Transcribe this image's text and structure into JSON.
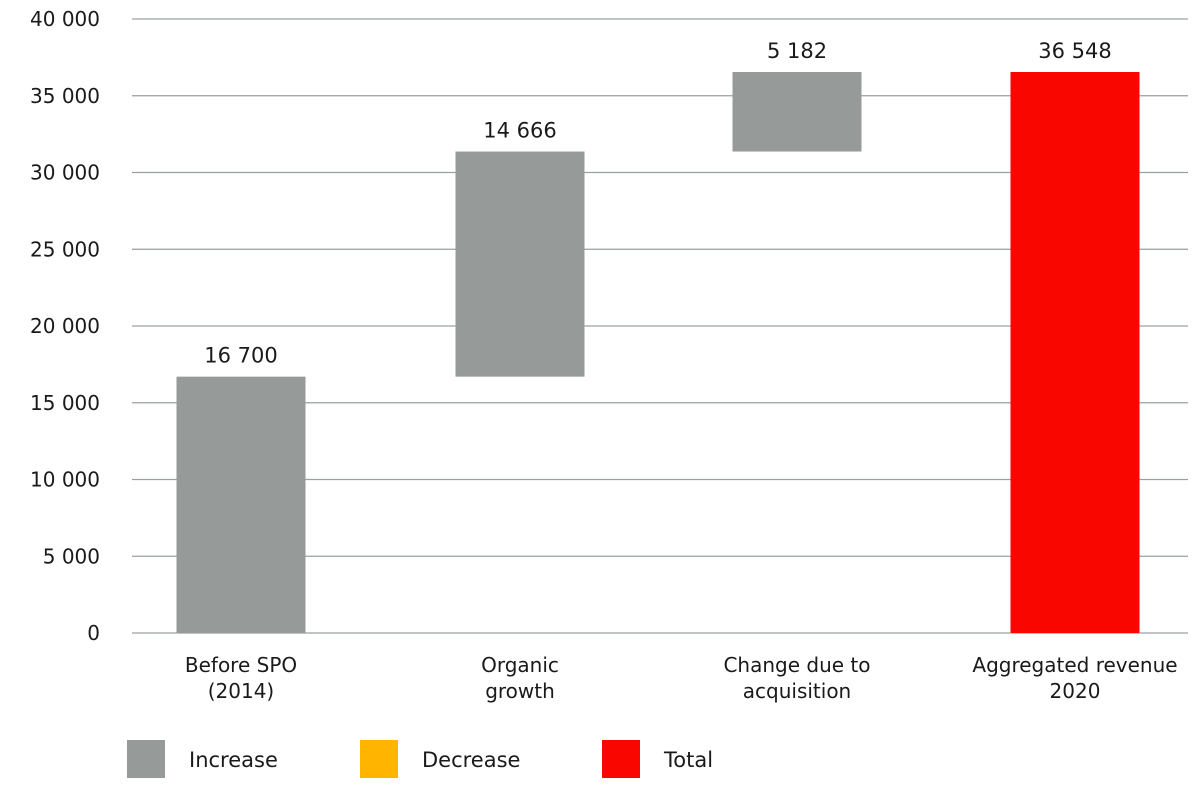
{
  "chart_data": {
    "type": "bar",
    "subtype": "waterfall",
    "categories": [
      [
        "Before SPO",
        "(2014)"
      ],
      [
        "Organic",
        "growth"
      ],
      [
        "Change due to",
        "acquisition"
      ],
      [
        "Aggregated revenue",
        "2020"
      ]
    ],
    "values": [
      16700,
      14666,
      5182,
      36548
    ],
    "bar_kinds": [
      "increase",
      "increase",
      "increase",
      "total"
    ],
    "data_labels": [
      "16 700",
      "14 666",
      "5 182",
      "36 548"
    ],
    "ylim": [
      0,
      40000
    ],
    "yticks": [
      0,
      5000,
      10000,
      15000,
      20000,
      25000,
      30000,
      35000,
      40000
    ],
    "ytick_labels": [
      "0",
      "5 000",
      "10 000",
      "15 000",
      "20 000",
      "25 000",
      "30 000",
      "35 000",
      "40 000"
    ],
    "grid": true,
    "legend": {
      "placement": "bottom",
      "entries": [
        {
          "label": "Increase",
          "color": "#969b9a"
        },
        {
          "label": "Decrease",
          "color": "#ffb400"
        },
        {
          "label": "Total",
          "color": "#fa0600"
        }
      ]
    },
    "colors": {
      "increase": "#969b9a",
      "decrease": "#ffb400",
      "total": "#fa0600"
    }
  }
}
